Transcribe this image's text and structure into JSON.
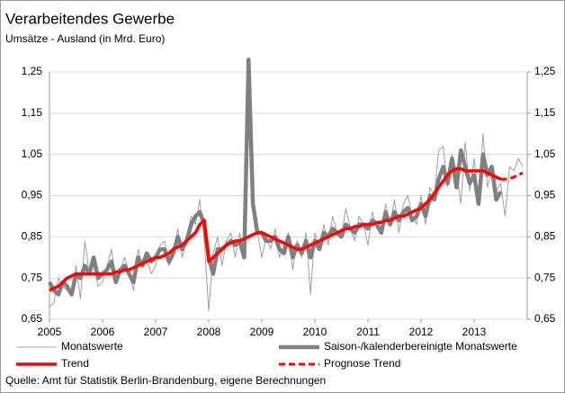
{
  "chart_data": {
    "type": "line",
    "title": "Verarbeitendes Gewerbe",
    "subtitle": "Umsätze - Ausland (in Mrd. Euro)",
    "source": "Quelle: Amt für Statistik Berlin-Brandenburg, eigene Berechnungen",
    "x": [
      2005,
      2005.083,
      2005.167,
      2005.25,
      2005.333,
      2005.417,
      2005.5,
      2005.583,
      2005.667,
      2005.75,
      2005.833,
      2005.917,
      2006,
      2006.083,
      2006.167,
      2006.25,
      2006.333,
      2006.417,
      2006.5,
      2006.583,
      2006.667,
      2006.75,
      2006.833,
      2006.917,
      2007,
      2007.083,
      2007.167,
      2007.25,
      2007.333,
      2007.417,
      2007.5,
      2007.583,
      2007.667,
      2007.75,
      2007.833,
      2007.917,
      2008,
      2008.083,
      2008.167,
      2008.25,
      2008.333,
      2008.417,
      2008.5,
      2008.583,
      2008.667,
      2008.75,
      2008.833,
      2008.917,
      2009,
      2009.083,
      2009.167,
      2009.25,
      2009.333,
      2009.417,
      2009.5,
      2009.583,
      2009.667,
      2009.75,
      2009.833,
      2009.917,
      2010,
      2010.083,
      2010.167,
      2010.25,
      2010.333,
      2010.417,
      2010.5,
      2010.583,
      2010.667,
      2010.75,
      2010.833,
      2010.917,
      2011,
      2011.083,
      2011.167,
      2011.25,
      2011.333,
      2011.417,
      2011.5,
      2011.583,
      2011.667,
      2011.75,
      2011.833,
      2011.917,
      2012,
      2012.083,
      2012.167,
      2012.25,
      2012.333,
      2012.417,
      2012.5,
      2012.583,
      2012.667,
      2012.75,
      2012.833,
      2012.917,
      2013,
      2013.083,
      2013.167,
      2013.25,
      2013.333,
      2013.417,
      2013.5,
      2013.583,
      2013.667,
      2013.75,
      2013.833,
      2013.917
    ],
    "series": [
      {
        "name": "Monatswerte",
        "color": "#a0a0a0",
        "width": 1,
        "dashed": false,
        "values": [
          0.68,
          0.69,
          0.75,
          0.73,
          0.72,
          0.71,
          0.78,
          0.7,
          0.84,
          0.76,
          0.78,
          0.73,
          0.74,
          0.78,
          0.82,
          0.74,
          0.77,
          0.8,
          0.76,
          0.72,
          0.82,
          0.78,
          0.8,
          0.76,
          0.78,
          0.83,
          0.84,
          0.78,
          0.8,
          0.87,
          0.8,
          0.84,
          0.9,
          0.88,
          0.94,
          0.84,
          0.67,
          0.81,
          0.85,
          0.78,
          0.84,
          0.86,
          0.8,
          0.86,
          0.8,
          1.25,
          0.92,
          0.86,
          0.8,
          0.85,
          0.82,
          0.87,
          0.8,
          0.83,
          0.86,
          0.77,
          0.84,
          0.8,
          0.86,
          0.71,
          0.86,
          0.82,
          0.88,
          0.83,
          0.9,
          0.86,
          0.85,
          0.92,
          0.87,
          0.84,
          0.9,
          0.88,
          0.83,
          0.91,
          0.87,
          0.86,
          0.93,
          0.88,
          0.94,
          0.86,
          0.93,
          0.95,
          0.9,
          0.88,
          0.95,
          0.88,
          0.97,
          0.95,
          1.06,
          1.07,
          0.97,
          1.05,
          1.01,
          0.93,
          1.08,
          0.96,
          1.04,
          0.94,
          1.1,
          0.97,
          1.01,
          0.96,
          0.98,
          0.9,
          1.02,
          1.01,
          1.04,
          1.02
        ]
      },
      {
        "name": "Saison-/kalenderbereinigte Monatswerte",
        "color": "#808080",
        "width": 4.5,
        "dashed": false,
        "values": [
          0.74,
          0.72,
          0.71,
          0.74,
          0.73,
          0.71,
          0.76,
          0.75,
          0.78,
          0.76,
          0.8,
          0.75,
          0.76,
          0.77,
          0.79,
          0.74,
          0.77,
          0.78,
          0.76,
          0.74,
          0.8,
          0.78,
          0.81,
          0.79,
          0.8,
          0.82,
          0.82,
          0.79,
          0.81,
          0.85,
          0.82,
          0.84,
          0.88,
          0.9,
          0.91,
          0.88,
          0.8,
          0.76,
          0.82,
          0.82,
          0.83,
          0.84,
          0.83,
          0.84,
          0.8,
          1.28,
          0.93,
          0.86,
          0.86,
          0.84,
          0.84,
          0.85,
          0.82,
          0.81,
          0.85,
          0.8,
          0.83,
          0.81,
          0.84,
          0.8,
          0.84,
          0.82,
          0.86,
          0.85,
          0.87,
          0.86,
          0.85,
          0.88,
          0.87,
          0.86,
          0.88,
          0.88,
          0.87,
          0.89,
          0.88,
          0.86,
          0.91,
          0.88,
          0.91,
          0.89,
          0.91,
          0.92,
          0.89,
          0.9,
          0.93,
          0.9,
          0.95,
          0.94,
          0.99,
          1.02,
          0.98,
          1.04,
          0.97,
          1.06,
          1.02,
          0.98,
          1.0,
          0.93,
          1.05,
          1.0,
          1.02,
          0.94,
          0.96,
          null,
          null,
          null,
          null,
          null
        ]
      },
      {
        "name": "Trend",
        "color": "#ff0000",
        "width": 3.5,
        "dashed": false,
        "values": [
          0.72,
          0.725,
          0.73,
          0.74,
          0.75,
          0.755,
          0.76,
          0.76,
          0.76,
          0.76,
          0.76,
          0.76,
          0.76,
          0.76,
          0.76,
          0.765,
          0.765,
          0.77,
          0.77,
          0.775,
          0.78,
          0.785,
          0.79,
          0.795,
          0.8,
          0.8,
          0.805,
          0.81,
          0.82,
          0.825,
          0.83,
          0.84,
          0.85,
          0.86,
          0.88,
          0.89,
          0.79,
          0.8,
          0.81,
          0.82,
          0.83,
          0.835,
          0.84,
          0.84,
          0.845,
          0.85,
          0.855,
          0.86,
          0.86,
          0.855,
          0.85,
          0.845,
          0.84,
          0.835,
          0.83,
          0.825,
          0.82,
          0.82,
          0.825,
          0.83,
          0.835,
          0.84,
          0.845,
          0.85,
          0.855,
          0.86,
          0.865,
          0.87,
          0.87,
          0.875,
          0.875,
          0.88,
          0.88,
          0.88,
          0.885,
          0.885,
          0.89,
          0.89,
          0.895,
          0.9,
          0.9,
          0.905,
          0.91,
          0.915,
          0.92,
          0.93,
          0.94,
          0.955,
          0.97,
          0.985,
          1.0,
          1.01,
          1.015,
          1.015,
          1.01,
          1.01,
          1.01,
          1.01,
          1.01,
          1.005,
          1.0,
          0.995,
          0.99,
          null,
          null,
          null,
          null,
          null
        ]
      },
      {
        "name": "Prognose Trend",
        "color": "#ff0000",
        "width": 3,
        "dashed": true,
        "values": [
          null,
          null,
          null,
          null,
          null,
          null,
          null,
          null,
          null,
          null,
          null,
          null,
          null,
          null,
          null,
          null,
          null,
          null,
          null,
          null,
          null,
          null,
          null,
          null,
          null,
          null,
          null,
          null,
          null,
          null,
          null,
          null,
          null,
          null,
          null,
          null,
          null,
          null,
          null,
          null,
          null,
          null,
          null,
          null,
          null,
          null,
          null,
          null,
          null,
          null,
          null,
          null,
          null,
          null,
          null,
          null,
          null,
          null,
          null,
          null,
          null,
          null,
          null,
          null,
          null,
          null,
          null,
          null,
          null,
          null,
          null,
          null,
          null,
          null,
          null,
          null,
          null,
          null,
          null,
          null,
          null,
          null,
          null,
          null,
          null,
          null,
          null,
          null,
          null,
          null,
          null,
          null,
          null,
          null,
          null,
          null,
          null,
          null,
          null,
          null,
          null,
          null,
          0.99,
          0.99,
          0.992,
          0.995,
          1.0,
          1.005
        ]
      }
    ],
    "xlim": [
      2005,
      2014
    ],
    "xticks": [
      2005,
      2006,
      2007,
      2008,
      2009,
      2010,
      2011,
      2012,
      2013
    ],
    "ylim": [
      0.65,
      1.25
    ],
    "yticks": [
      {
        "value": 0.65,
        "label": "0,65"
      },
      {
        "value": 0.75,
        "label": "0,75"
      },
      {
        "value": 0.85,
        "label": "0,85"
      },
      {
        "value": 0.95,
        "label": "0,95"
      },
      {
        "value": 1.05,
        "label": "1,05"
      },
      {
        "value": 1.15,
        "label": "1,15"
      },
      {
        "value": 1.25,
        "label": "1,25"
      }
    ],
    "y2lim": [
      0.65,
      1.25
    ],
    "y2ticks": [
      {
        "value": 0.65,
        "label": "0,65"
      },
      {
        "value": 0.75,
        "label": "0,75"
      },
      {
        "value": 0.85,
        "label": "0,85"
      },
      {
        "value": 0.95,
        "label": "0,95"
      },
      {
        "value": 1.05,
        "label": "1,05"
      },
      {
        "value": 1.15,
        "label": "1,15"
      },
      {
        "value": 1.25,
        "label": "1,25"
      }
    ],
    "grid": true,
    "legend": "bottom"
  }
}
